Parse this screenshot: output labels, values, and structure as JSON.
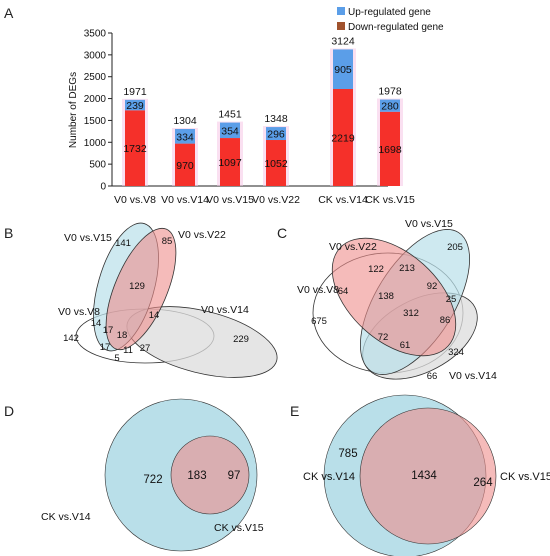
{
  "panel_letters": {
    "a": "A",
    "b": "B",
    "c": "C",
    "d": "D",
    "e": "E"
  },
  "chart_data": [
    {
      "type": "bar",
      "stacked": true,
      "categories": [
        "V0 vs.V8",
        "V0 vs.V14",
        "V0 vs.V15",
        "V0 vs.V22",
        "CK vs.V14",
        "CK vs.V15"
      ],
      "series": [
        {
          "name": "Down-regulated gene",
          "values": [
            1732,
            970,
            1097,
            1052,
            2219,
            1698
          ],
          "color": "#f5302a"
        },
        {
          "name": "Up-regulated gene",
          "values": [
            239,
            334,
            354,
            296,
            905,
            280
          ],
          "color": "#5b9ee8"
        }
      ],
      "totals": [
        1971,
        1304,
        1451,
        1348,
        3124,
        1978
      ],
      "ylabel": "Number of DEGs",
      "yticks": [
        0,
        500,
        1000,
        1500,
        2000,
        2500,
        3000,
        3500
      ],
      "ylim": [
        0,
        3500
      ],
      "legend": [
        "Up-regulated gene",
        "Down-regulated gene"
      ],
      "legend_position": "top-right",
      "grid": false
    },
    {
      "type": "venn",
      "sets": [
        "V0 vs.V15",
        "V0 vs.V22",
        "V0 vs.V8",
        "V0 vs.V14"
      ],
      "counts": [
        "141",
        "85",
        "129",
        "142",
        "229",
        "14",
        "17",
        "17",
        "18",
        "11",
        "14",
        "5",
        "27"
      ]
    },
    {
      "type": "venn",
      "sets": [
        "V0 vs.V15",
        "V0 vs.V22",
        "V0 vs.V8",
        "V0 vs.V14"
      ],
      "counts": [
        "205",
        "122",
        "213",
        "64",
        "138",
        "92",
        "25",
        "675",
        "312",
        "86",
        "72",
        "61",
        "324",
        "66"
      ]
    },
    {
      "type": "venn",
      "sets": [
        "CK vs.V14",
        "CK vs.V15"
      ],
      "counts": [
        "722",
        "183",
        "97"
      ]
    },
    {
      "type": "venn",
      "sets": [
        "CK vs.V14",
        "CK vs.V15"
      ],
      "counts": [
        "785",
        "1434",
        "264"
      ]
    }
  ],
  "colors": {
    "up": "#5b9ee8",
    "down": "#f5302a",
    "venn_blue": "#b9dfe9",
    "venn_red": "#ee8e8c",
    "venn_grey": "#dcdcdc"
  }
}
